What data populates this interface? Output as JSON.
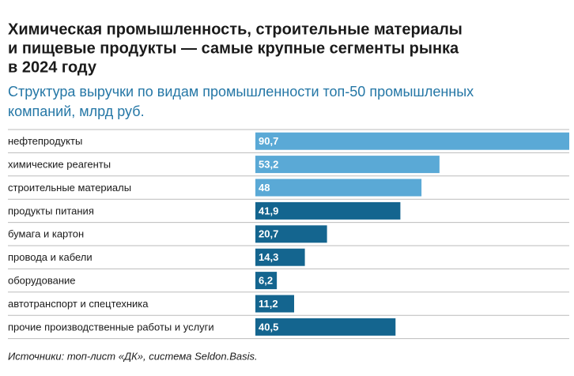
{
  "chart_data": {
    "type": "bar",
    "orientation": "horizontal",
    "title": [
      "Химическая промышленность, строительные материалы",
      "и пищевые продукты — самые крупные сегменты рынка",
      "в 2024 году"
    ],
    "subtitle": [
      "Структура выручки по видам промышленности топ-50 промышленных",
      "компаний, млрд руб."
    ],
    "categories": [
      "нефтепродукты",
      "химические реагенты",
      "строительные материалы",
      "продукты питания",
      "бумага и картон",
      "провода и кабели",
      "оборудование",
      "автотранспорт и спецтехника",
      "прочие производственные работы и услуги"
    ],
    "values": [
      90.7,
      53.2,
      48,
      41.9,
      20.7,
      14.3,
      6.2,
      11.2,
      40.5
    ],
    "value_labels": [
      "90,7",
      "53,2",
      "48",
      "41,9",
      "20,7",
      "14,3",
      "6,2",
      "11,2",
      "40,5"
    ],
    "colors": [
      "#5aa9d6",
      "#5aa9d6",
      "#5aa9d6",
      "#14658f",
      "#14658f",
      "#14658f",
      "#14658f",
      "#14658f",
      "#14658f"
    ],
    "source": "Источники: топ-лист «ДК», система Seldon.Basis."
  }
}
